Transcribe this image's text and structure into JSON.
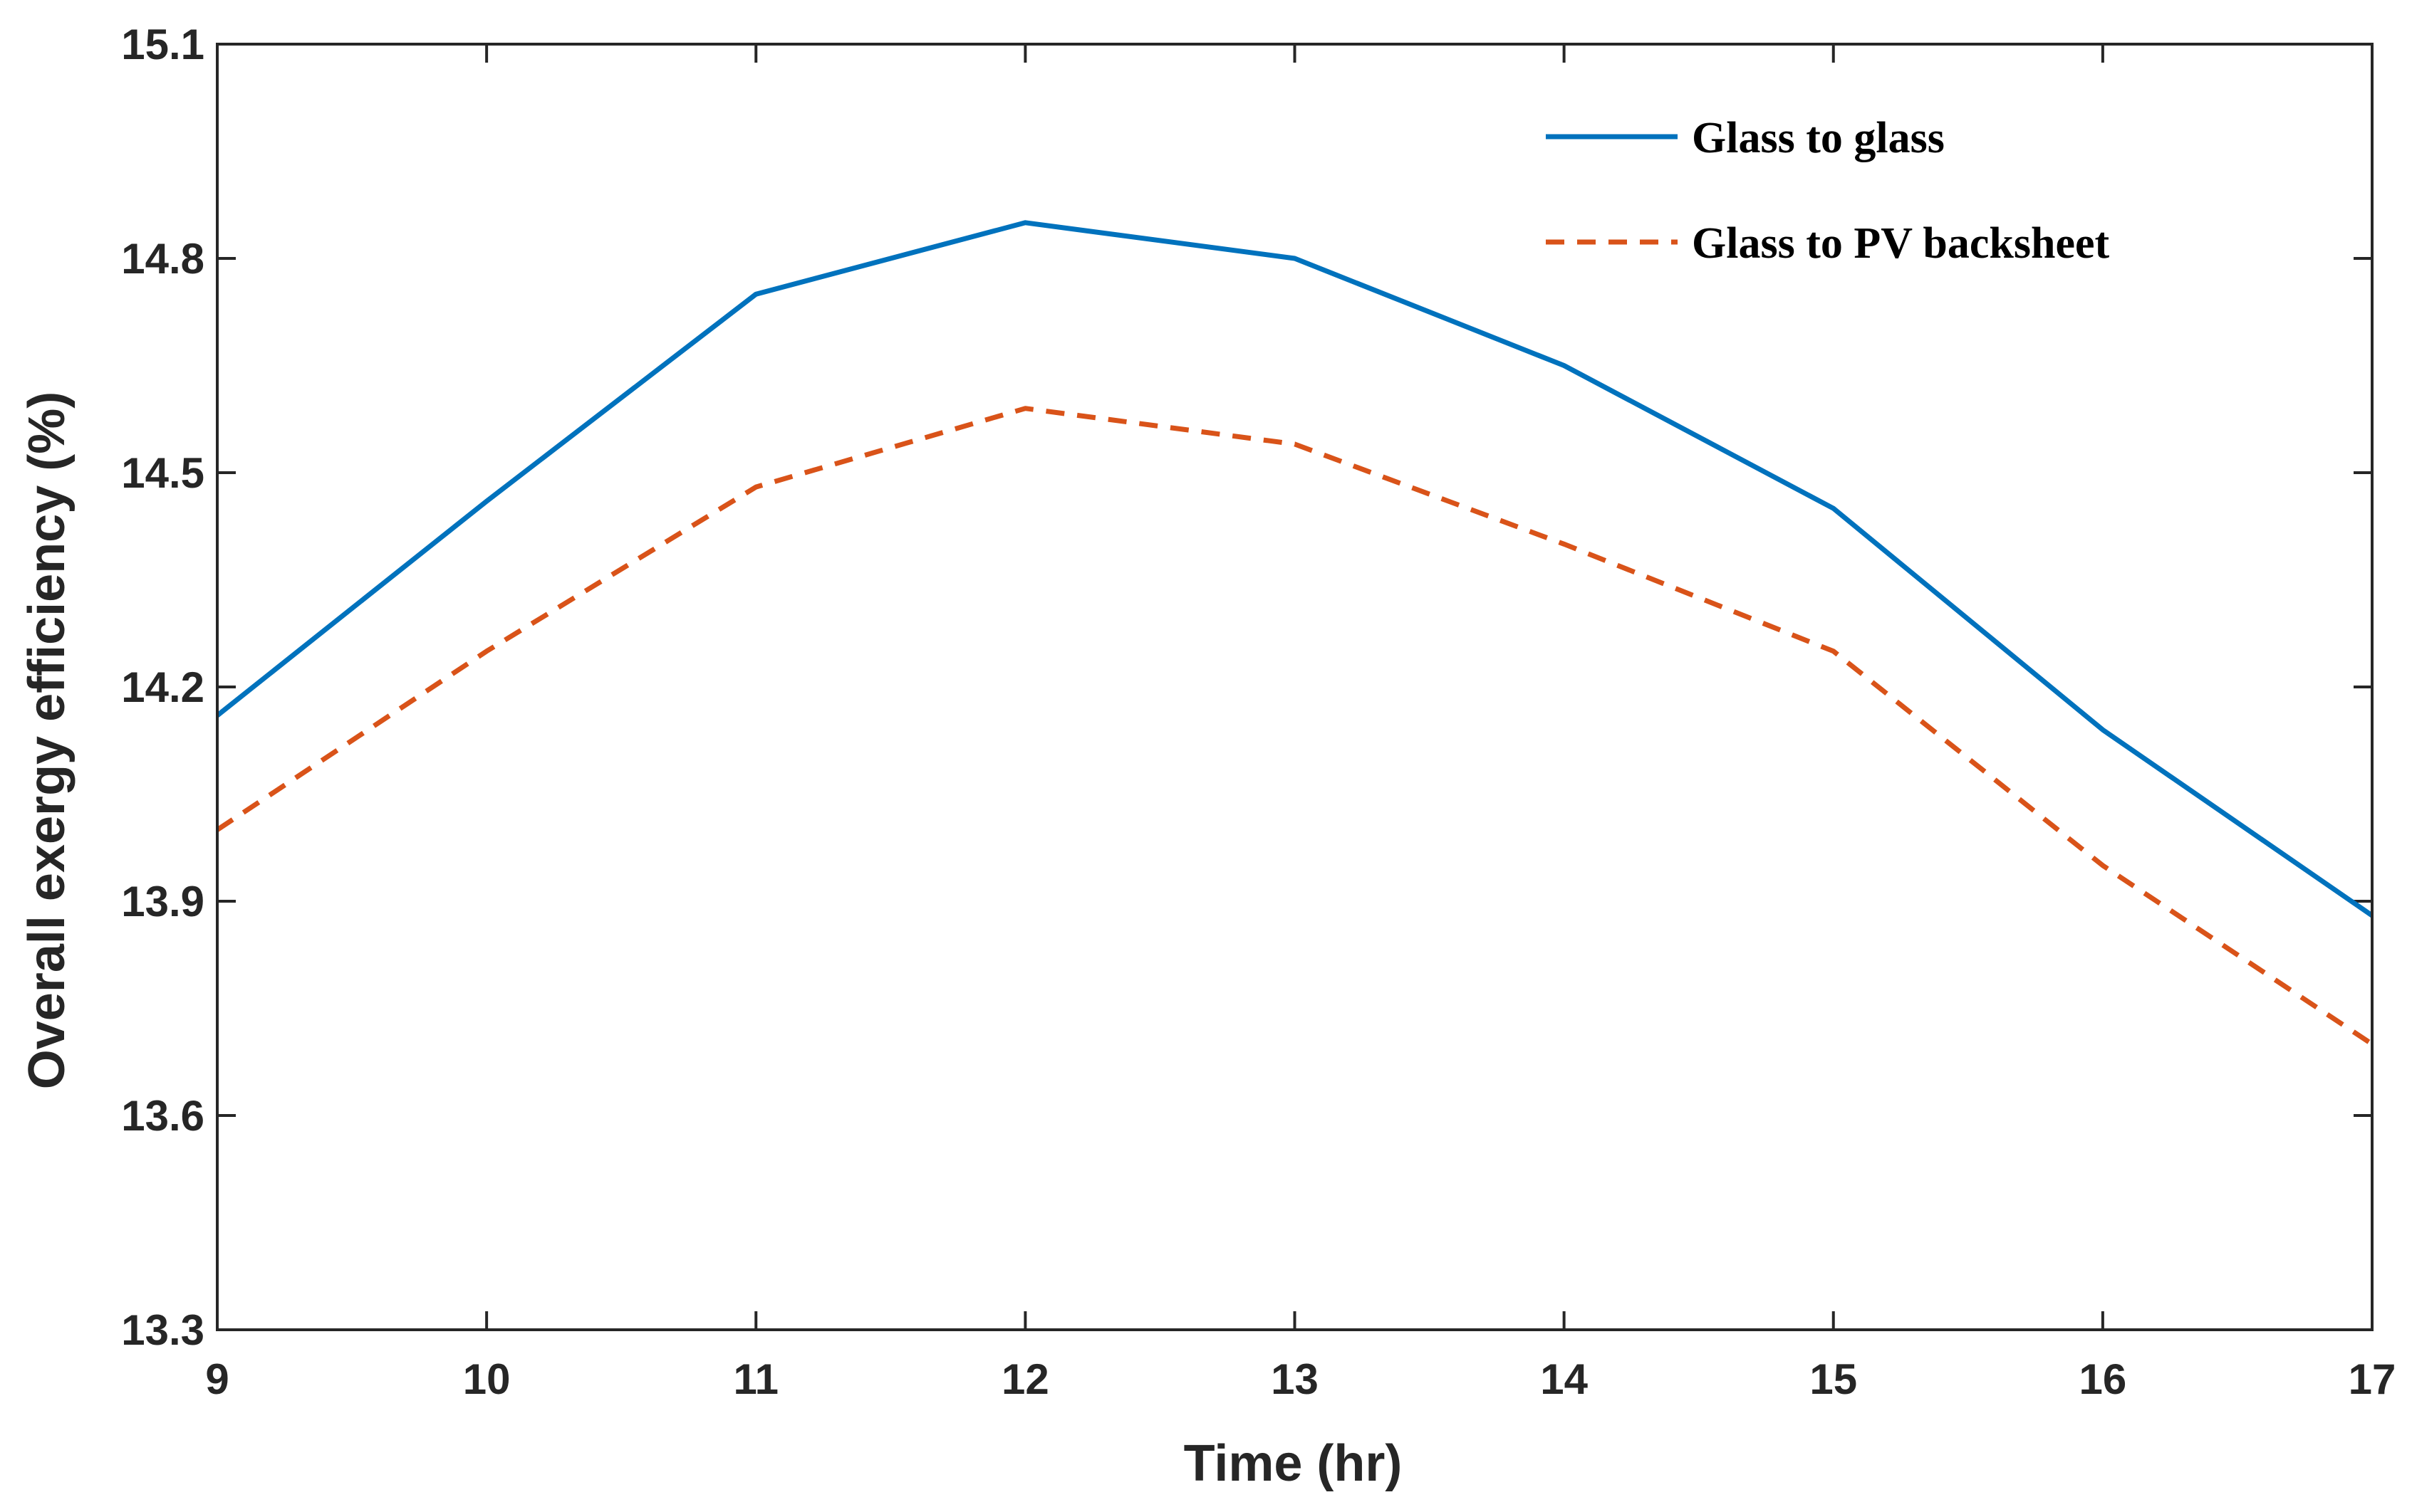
{
  "chart_data": {
    "type": "line",
    "title": "",
    "xlabel": "Time (hr)",
    "ylabel": "Overall exergy efficiency (%)",
    "xlim": [
      9,
      17
    ],
    "ylim": [
      13.3,
      15.1
    ],
    "xticks": [
      9,
      10,
      11,
      12,
      13,
      14,
      15,
      16,
      17
    ],
    "yticks": [
      13.3,
      13.6,
      13.9,
      14.2,
      14.5,
      14.8,
      15.1
    ],
    "x": [
      9,
      10,
      11,
      12,
      13,
      14,
      15,
      16,
      17
    ],
    "grid": false,
    "legend_position": "top-right",
    "series": [
      {
        "name": "Glass to glass",
        "values": [
          14.16,
          14.46,
          14.75,
          14.85,
          14.8,
          14.65,
          14.45,
          14.14,
          13.88
        ],
        "color": "#0072BD",
        "style": "solid"
      },
      {
        "name": "Glass to PV backsheet",
        "values": [
          14.0,
          14.25,
          14.48,
          14.59,
          14.54,
          14.4,
          14.25,
          13.95,
          13.7
        ],
        "color": "#D95319",
        "style": "dashed"
      }
    ]
  }
}
